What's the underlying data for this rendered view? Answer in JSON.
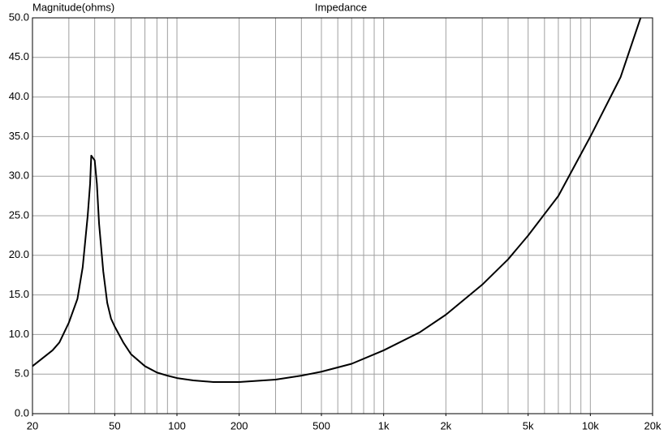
{
  "chart_data": {
    "type": "line",
    "title": "Impedance",
    "y_label": "Magnitude(ohms)",
    "x_scale": "log",
    "grid": true,
    "xlim": [
      20,
      20000
    ],
    "ylim": [
      0,
      50
    ],
    "xticks": [
      20,
      50,
      100,
      200,
      500,
      {
        "value": 1000,
        "label": "1k"
      },
      {
        "value": 2000,
        "label": "2k"
      },
      {
        "value": 5000,
        "label": "5k"
      },
      {
        "value": 10000,
        "label": "10k"
      },
      {
        "value": 20000,
        "label": "20k"
      }
    ],
    "xgrid": [
      30,
      40,
      50,
      60,
      70,
      80,
      90,
      100,
      200,
      300,
      400,
      500,
      600,
      700,
      800,
      900,
      1000,
      2000,
      3000,
      4000,
      5000,
      6000,
      7000,
      8000,
      9000,
      10000
    ],
    "yticks": [
      {
        "value": 0,
        "label": "0.0"
      },
      {
        "value": 5,
        "label": "5.0"
      },
      {
        "value": 10,
        "label": "10.0"
      },
      {
        "value": 15,
        "label": "15.0"
      },
      {
        "value": 20,
        "label": "20.0"
      },
      {
        "value": 25,
        "label": "25.0"
      },
      {
        "value": 30,
        "label": "30.0"
      },
      {
        "value": 35,
        "label": "35.0"
      },
      {
        "value": 40,
        "label": "40.0"
      },
      {
        "value": 45,
        "label": "45.0"
      },
      {
        "value": 50,
        "label": "50.0"
      }
    ],
    "series": [
      {
        "name": "Impedance",
        "color": "#000000",
        "x": [
          20,
          25,
          27,
          30,
          33,
          35,
          37,
          38,
          38.5,
          40,
          41,
          42,
          44,
          46,
          48,
          50,
          55,
          60,
          70,
          80,
          90,
          100,
          120,
          150,
          200,
          300,
          400,
          500,
          700,
          1000,
          1500,
          2000,
          3000,
          4000,
          5000,
          7000,
          10000,
          14000,
          17500
        ],
        "values": [
          6.0,
          8.0,
          9.0,
          11.5,
          14.5,
          18.5,
          25,
          29,
          32.6,
          32.0,
          29,
          24,
          18,
          14,
          12,
          11,
          9,
          7.5,
          6.0,
          5.2,
          4.8,
          4.5,
          4.2,
          4.0,
          4.0,
          4.3,
          4.8,
          5.3,
          6.3,
          8.0,
          10.3,
          12.5,
          16.3,
          19.5,
          22.5,
          27.5,
          35,
          42.5,
          50
        ]
      }
    ]
  }
}
